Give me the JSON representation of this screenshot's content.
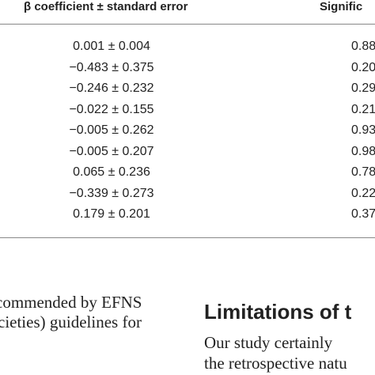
{
  "table": {
    "header": [
      "β coefficient ± standard error",
      "Signific"
    ],
    "rows": [
      [
        "0.001 ± 0.004",
        "0.88"
      ],
      [
        "−0.483 ± 0.375",
        "0.20"
      ],
      [
        "−0.246 ± 0.232",
        "0.29"
      ],
      [
        "−0.022 ± 0.155",
        "0.21"
      ],
      [
        "−0.005 ± 0.262",
        "0.93"
      ],
      [
        "−0.005 ± 0.207",
        "0.98"
      ],
      [
        "0.065 ± 0.236",
        "0.78"
      ],
      [
        "−0.339 ± 0.273",
        "0.22"
      ],
      [
        "0.179 ± 0.201",
        "0.37"
      ]
    ]
  },
  "left_text": [
    "commended by EFNS",
    "cieties) guidelines for"
  ],
  "right_section": {
    "heading": "Limitations of t",
    "lines": [
      "Our study certainly",
      "the retrospective natu"
    ]
  }
}
